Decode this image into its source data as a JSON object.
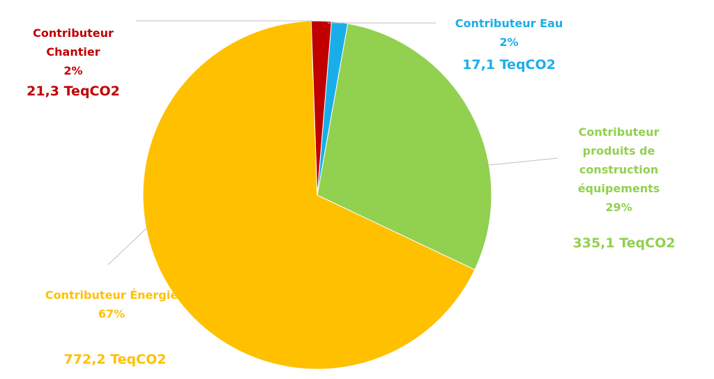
{
  "chart_data": {
    "type": "pie",
    "categories": [
      "Contributeur Chantier",
      "Contributeur Eau",
      "Contributeur produits de construction équipements",
      "Contributeur Énergie"
    ],
    "values": [
      21.3,
      17.1,
      335.1,
      772.2
    ],
    "value_labels": [
      "21,3  TeqCO2",
      "17,1 TeqCO2",
      "335,1 TeqCO2",
      "772,2  TeqCO2"
    ],
    "percents": [
      2,
      2,
      29,
      67
    ],
    "percent_labels": [
      "2%",
      "2%",
      "29%",
      "67%"
    ],
    "colors": [
      "#c00000",
      "#1aaee8",
      "#92d050",
      "#ffc000"
    ]
  }
}
